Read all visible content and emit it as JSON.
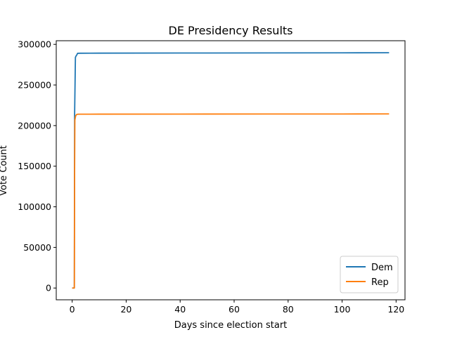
{
  "chart_data": {
    "type": "line",
    "title": "DE Presidency Results",
    "xlabel": "Days since election start",
    "ylabel": "Vote Count",
    "xlim": [
      -5.9,
      123.3
    ],
    "ylim": [
      -14500,
      304500
    ],
    "xticks": [
      0,
      20,
      40,
      60,
      80,
      100,
      120
    ],
    "yticks": [
      0,
      50000,
      100000,
      150000,
      200000,
      250000,
      300000
    ],
    "grid": false,
    "legend_position": "lower-right",
    "series": [
      {
        "name": "Dem",
        "color": "#1f77b4",
        "x": [
          0.0,
          0.8,
          0.9,
          1.2,
          1.4,
          1.5,
          1.8,
          2.0,
          3.0,
          10,
          50,
          100,
          117.4
        ],
        "y": [
          0,
          0,
          213000,
          284000,
          285500,
          286000,
          287500,
          289000,
          289100,
          289200,
          289400,
          289600,
          289700
        ]
      },
      {
        "name": "Rep",
        "color": "#ff7f0e",
        "x": [
          0.0,
          0.8,
          0.9,
          1.0,
          1.3,
          1.6,
          2.0,
          3.0,
          10,
          50,
          100,
          117.4
        ],
        "y": [
          0,
          0,
          145000,
          207000,
          212000,
          213500,
          214000,
          214050,
          214100,
          214200,
          214300,
          214400
        ]
      }
    ]
  }
}
